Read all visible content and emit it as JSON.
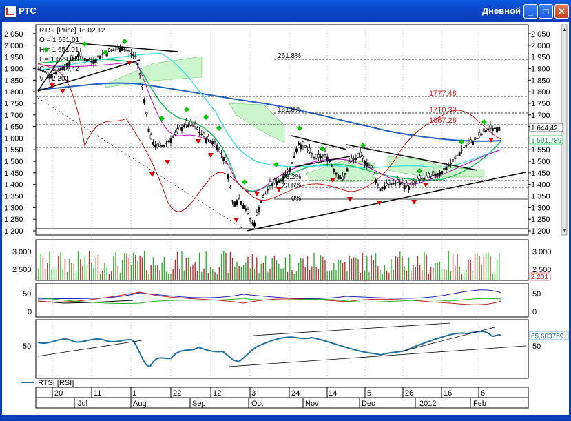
{
  "window": {
    "title": "РТС",
    "subtitle": "Дневной",
    "min_label": "_",
    "max_label": "□",
    "close_label": "✕"
  },
  "price_panel": {
    "info": [
      "RTSI [Price] 16.02.12",
      "O = 1 651,01",
      "H = 1 651,01",
      "L = 1 629,07",
      "C = 1 644,42",
      "V = 2 201"
    ],
    "y_ticks": [
      "2 050",
      "2 000",
      "1 950",
      "1 900",
      "1 850",
      "1 800",
      "1 750",
      "1 700",
      "1 650",
      "1 600",
      "1 550",
      "1 500",
      "1 450",
      "1 400",
      "1 350",
      "1 300",
      "1 250",
      "1 200"
    ],
    "last_price": "1 644,42",
    "ma_value": "1 591,789",
    "fib_labels": [
      "261.8%",
      "161.8%",
      "38.2%",
      "23.6%",
      "0%"
    ],
    "target_labels": [
      "1777.48",
      "1710.30",
      "1667.28"
    ]
  },
  "volume_panel": {
    "y_ticks": [
      "3 000",
      "2 500"
    ],
    "last_volume": "2 201"
  },
  "adx_panel": {
    "y_ticks": [
      "50",
      "0"
    ]
  },
  "rsi_panel": {
    "y_ticks": [
      "50"
    ],
    "last_value": "65,603759",
    "legend": "RTSI [RSI]"
  },
  "x_axis": {
    "day_labels": [
      "20",
      "11",
      "1",
      "22",
      "12",
      "3",
      "24",
      "14",
      "5",
      "26",
      "16",
      "6"
    ],
    "month_labels": [
      "Jul",
      "Aug",
      "Sep",
      "Oct",
      "Nov",
      "Dec",
      "2012",
      "Feb"
    ]
  },
  "colors": {
    "up_candle": "#000000",
    "down_candle": "#ffffff",
    "arrow_up": "#00c800",
    "arrow_down": "#e00000",
    "ma_blue": "#2060c0",
    "ma_green": "#20c060",
    "ma_cyan": "#40e0e0",
    "kumo": "#a0f0a0",
    "rsi_line": "#1f6fa0"
  }
}
